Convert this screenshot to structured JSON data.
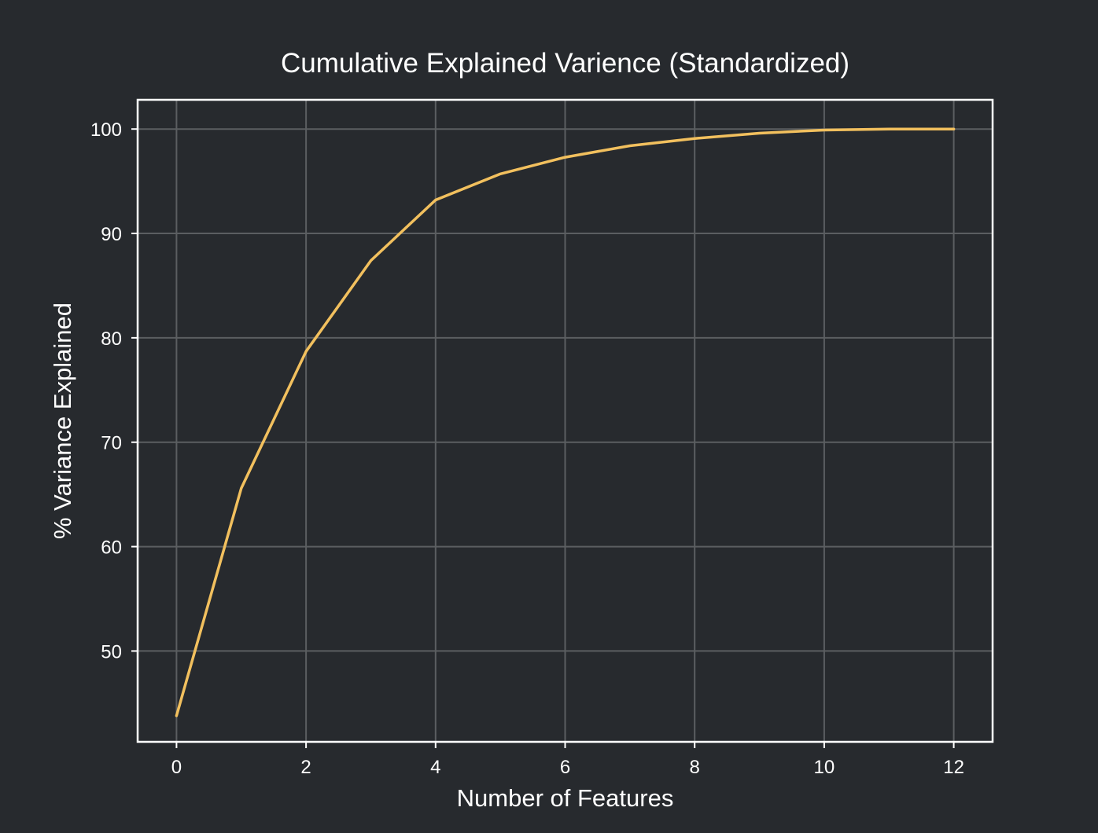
{
  "chart_data": {
    "type": "line",
    "title": "Cumulative Explained Varience (Standardized)",
    "xlabel": "Number of Features",
    "ylabel": "% Variance Explained",
    "xlim": [
      -0.6,
      12.6
    ],
    "ylim": [
      41.3,
      102.8
    ],
    "xticks": [
      0,
      2,
      4,
      6,
      8,
      10,
      12
    ],
    "yticks": [
      50,
      60,
      70,
      80,
      90,
      100
    ],
    "grid": true,
    "series": [
      {
        "name": "cumulative explained variance",
        "color": "#f2c05e",
        "x": [
          0,
          1,
          2,
          3,
          4,
          5,
          6,
          7,
          8,
          9,
          10,
          11,
          12
        ],
        "values": [
          43.8,
          65.6,
          78.7,
          87.4,
          93.2,
          95.7,
          97.3,
          98.4,
          99.1,
          99.6,
          99.9,
          100.0,
          100.0
        ]
      }
    ]
  }
}
